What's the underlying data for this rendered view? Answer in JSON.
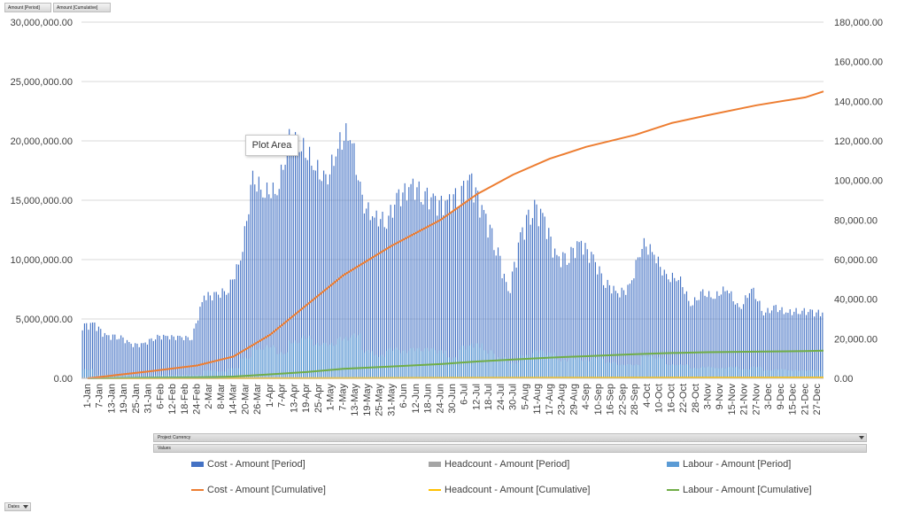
{
  "field_buttons": {
    "period": "Amount [Period]",
    "cumulative": "Amount [Cumulative]"
  },
  "filters": {
    "project_currency": "Project Currency",
    "values": "Values",
    "dates": "Dates"
  },
  "tooltip": "Plot Area",
  "colors": {
    "cost_period": "#4472c4",
    "headcount_period": "#a5a5a5",
    "labour_period": "#5b9bd5",
    "cost_cumulative": "#ed7d31",
    "headcount_cumulative": "#ffc000",
    "labour_cumulative": "#70ad47"
  },
  "legend": {
    "cost_period": "Cost - Amount [Period]",
    "headcount_period": "Headcount - Amount [Period]",
    "labour_period": "Labour - Amount [Period]",
    "cost_cumulative": "Cost - Amount [Cumulative]",
    "headcount_cumulative": "Headcount - Amount [Cumulative]",
    "labour_cumulative": "Labour - Amount [Cumulative]"
  },
  "chart_data": {
    "type": "bar",
    "primary_axis": {
      "ylim": [
        0,
        30000000
      ],
      "ticks": [
        "0.00",
        "5,000,000.00",
        "10,000,000.00",
        "15,000,000.00",
        "20,000,000.00",
        "25,000,000.00",
        "30,000,000.00"
      ]
    },
    "secondary_axis": {
      "ylim": [
        0,
        180000
      ],
      "ticks": [
        "0.00",
        "20,000.00",
        "40,000.00",
        "60,000.00",
        "80,000.00",
        "100,000.00",
        "120,000.00",
        "140,000.00",
        "160,000.00",
        "180,000.00"
      ]
    },
    "grid": true,
    "legend_position": "bottom",
    "x_tick_labels": [
      "1-Jan",
      "7-Jan",
      "13-Jan",
      "19-Jan",
      "25-Jan",
      "31-Jan",
      "6-Feb",
      "12-Feb",
      "18-Feb",
      "24-Feb",
      "2-Mar",
      "8-Mar",
      "14-Mar",
      "20-Mar",
      "26-Mar",
      "1-Apr",
      "7-Apr",
      "13-Apr",
      "19-Apr",
      "25-Apr",
      "1-May",
      "7-May",
      "13-May",
      "19-May",
      "25-May",
      "31-May",
      "6-Jun",
      "12-Jun",
      "18-Jun",
      "24-Jun",
      "30-Jun",
      "6-Jul",
      "12-Jul",
      "18-Jul",
      "24-Jul",
      "30-Jul",
      "5-Aug",
      "11-Aug",
      "17-Aug",
      "23-Aug",
      "29-Aug",
      "4-Sep",
      "10-Sep",
      "16-Sep",
      "22-Sep",
      "28-Sep",
      "4-Oct",
      "10-Oct",
      "16-Oct",
      "22-Oct",
      "28-Oct",
      "3-Nov",
      "9-Nov",
      "15-Nov",
      "21-Nov",
      "27-Nov",
      "3-Dec",
      "9-Dec",
      "15-Dec",
      "21-Dec",
      "27-Dec"
    ],
    "cost_period_by_label": [
      4.7,
      4.8,
      3.7,
      3.8,
      3.0,
      3.0,
      3.7,
      3.7,
      3.6,
      3.6,
      7.3,
      7.3,
      7.9,
      10.5,
      17.5,
      16.5,
      16.5,
      21.0,
      20.5,
      19.0,
      17.2,
      20.5,
      22.0,
      15.5,
      14.2,
      14.0,
      16.0,
      17.0,
      16.5,
      15.5,
      15.5,
      16.5,
      17.5,
      14.5,
      12.0,
      7.5,
      12.5,
      15.5,
      14.0,
      10.5,
      11.0,
      12.0,
      10.5,
      8.5,
      7.5,
      8.0,
      12.0,
      11.0,
      8.8,
      9.0,
      6.5,
      7.5,
      7.2,
      8.0,
      6.0,
      8.0,
      5.8,
      6.2,
      5.8,
      6.0,
      5.8
    ],
    "labour_period_by_label": [
      0.8,
      0.3,
      0.3,
      0.3,
      0.2,
      0.2,
      0.3,
      0.3,
      0.3,
      0.3,
      0.7,
      0.6,
      0.9,
      1.8,
      2.6,
      2.8,
      2.2,
      3.2,
      3.6,
      3.0,
      3.0,
      3.5,
      3.8,
      2.4,
      2.0,
      2.6,
      2.4,
      2.6,
      2.6,
      2.4,
      1.8,
      2.8,
      3.0,
      2.4,
      1.8,
      1.4,
      2.0,
      2.4,
      2.2,
      1.6,
      1.8,
      1.6,
      1.8,
      1.4,
      1.2,
      1.2,
      2.0,
      1.8,
      1.2,
      1.2,
      0.9,
      1.0,
      0.9,
      1.0,
      0.8,
      1.0,
      0.7,
      0.8,
      0.7,
      0.7,
      0.7
    ],
    "headcount_period_by_label": [
      0.1,
      0.1,
      0.1,
      0.1,
      0.1,
      0.1,
      0.1,
      0.1,
      0.1,
      0.1,
      0.1,
      0.1,
      0.1,
      0.1,
      0.1,
      0.1,
      0.1,
      0.1,
      0.1,
      0.1,
      0.1,
      0.1,
      0.1,
      0.1,
      0.1,
      0.1,
      0.1,
      0.1,
      0.1,
      0.1,
      0.1,
      0.1,
      0.1,
      0.1,
      0.1,
      0.1,
      0.1,
      0.1,
      0.1,
      0.1,
      0.1,
      0.1,
      0.1,
      0.1,
      0.1,
      0.1,
      0.1,
      0.1,
      0.1,
      0.1,
      0.1,
      0.1,
      0.1,
      0.1,
      0.1,
      0.1,
      0.1,
      0.1,
      0.1,
      0.1,
      0.1
    ],
    "period_value_unit": "millions",
    "cost_cumulative": {
      "x": [
        "1-Jan",
        "31-Jan",
        "24-Feb",
        "14-Mar",
        "1-Apr",
        "19-Apr",
        "7-May",
        "31-May",
        "24-Jun",
        "12-Jul",
        "30-Jul",
        "17-Aug",
        "4-Sep",
        "28-Sep",
        "16-Oct",
        "3-Nov",
        "27-Nov",
        "21-Dec",
        "31-Dec"
      ],
      "y": [
        0,
        3500,
        6500,
        11000,
        22000,
        37000,
        52000,
        67000,
        80000,
        93000,
        103000,
        111000,
        117000,
        123000,
        129000,
        133000,
        138000,
        142000,
        145000
      ]
    },
    "labour_cumulative": {
      "x": [
        "1-Jan",
        "31-Jan",
        "24-Feb",
        "14-Mar",
        "1-Apr",
        "19-Apr",
        "7-May",
        "31-May",
        "24-Jun",
        "12-Jul",
        "30-Jul",
        "17-Aug",
        "4-Sep",
        "28-Sep",
        "16-Oct",
        "3-Nov",
        "27-Nov",
        "21-Dec",
        "31-Dec"
      ],
      "y": [
        0,
        300,
        500,
        900,
        2000,
        3200,
        4800,
        6000,
        7200,
        8500,
        9500,
        10500,
        11200,
        12200,
        12800,
        13200,
        13500,
        13800,
        14000
      ]
    },
    "headcount_cumulative": {
      "x": [
        "1-Jan",
        "31-Dec"
      ],
      "y": [
        0,
        400
      ]
    }
  }
}
